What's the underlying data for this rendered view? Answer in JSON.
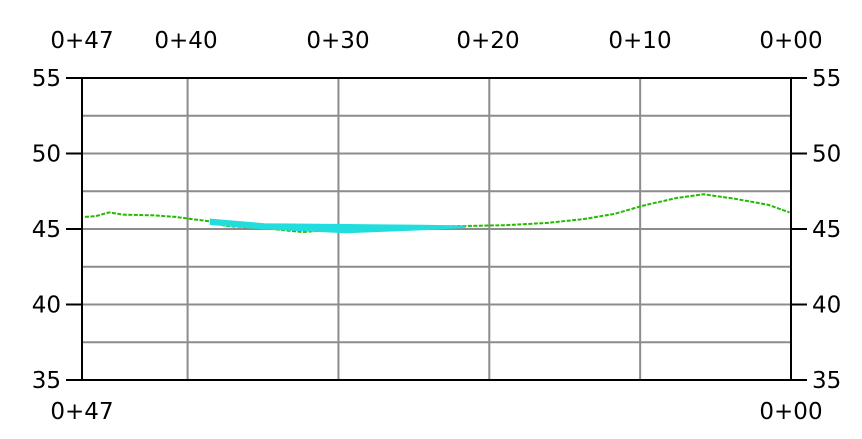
{
  "chart_data": {
    "type": "line",
    "x_range": [
      47,
      0
    ],
    "y_range": [
      35,
      55
    ],
    "top_station_labels": [
      {
        "x": 47,
        "label": "0+47"
      },
      {
        "x": 40,
        "label": "0+40"
      },
      {
        "x": 30,
        "label": "0+30"
      },
      {
        "x": 20,
        "label": "0+20"
      },
      {
        "x": 10,
        "label": "0+10"
      },
      {
        "x": 0,
        "label": "0+00"
      }
    ],
    "bottom_station_labels": [
      {
        "x": 47,
        "label": "0+47"
      },
      {
        "x": 0,
        "label": "0+00"
      }
    ],
    "y_ticks_left": [
      {
        "y": 55,
        "label": "55"
      },
      {
        "y": 50,
        "label": "50"
      },
      {
        "y": 45,
        "label": "45"
      },
      {
        "y": 40,
        "label": "40"
      },
      {
        "y": 35,
        "label": "35"
      }
    ],
    "y_ticks_right": [
      {
        "y": 55,
        "label": "55"
      },
      {
        "y": 50,
        "label": "50"
      },
      {
        "y": 45,
        "label": "45"
      },
      {
        "y": 40,
        "label": "40"
      },
      {
        "y": 35,
        "label": "35"
      }
    ],
    "grid": {
      "vertical_x": [
        40,
        30,
        20,
        10
      ],
      "horizontal_y": [
        52.5,
        50,
        47.5,
        45,
        42.5,
        40,
        37.5
      ]
    },
    "series": [
      {
        "color": "#22bb00",
        "style": "dashed",
        "points": [
          [
            46.8,
            45.8
          ],
          [
            46.1,
            45.85
          ],
          [
            45.2,
            46.1
          ],
          [
            44.3,
            45.95
          ],
          [
            42.2,
            45.9
          ],
          [
            40.8,
            45.8
          ],
          [
            38.5,
            45.5
          ],
          [
            37.5,
            45.2
          ],
          [
            34.9,
            45.05
          ],
          [
            32.4,
            44.8
          ],
          [
            29.5,
            45.0
          ],
          [
            27.2,
            45.1
          ],
          [
            24.4,
            45.15
          ],
          [
            21.6,
            45.2
          ],
          [
            19.0,
            45.25
          ],
          [
            16.2,
            45.4
          ],
          [
            13.8,
            45.65
          ],
          [
            11.7,
            46.0
          ],
          [
            9.8,
            46.55
          ],
          [
            7.6,
            47.05
          ],
          [
            5.8,
            47.3
          ],
          [
            3.7,
            47.0
          ],
          [
            1.5,
            46.6
          ],
          [
            0.1,
            46.1
          ]
        ]
      },
      {
        "color": "#22dddd",
        "style": "filled-band",
        "upper": [
          [
            38.5,
            45.65
          ],
          [
            34.9,
            45.35
          ],
          [
            29.5,
            45.3
          ],
          [
            24.4,
            45.25
          ],
          [
            21.6,
            45.2
          ]
        ],
        "lower": [
          [
            38.5,
            45.3
          ],
          [
            34.9,
            45.0
          ],
          [
            29.5,
            44.75
          ],
          [
            24.4,
            44.95
          ],
          [
            21.6,
            45.1
          ]
        ]
      }
    ]
  }
}
